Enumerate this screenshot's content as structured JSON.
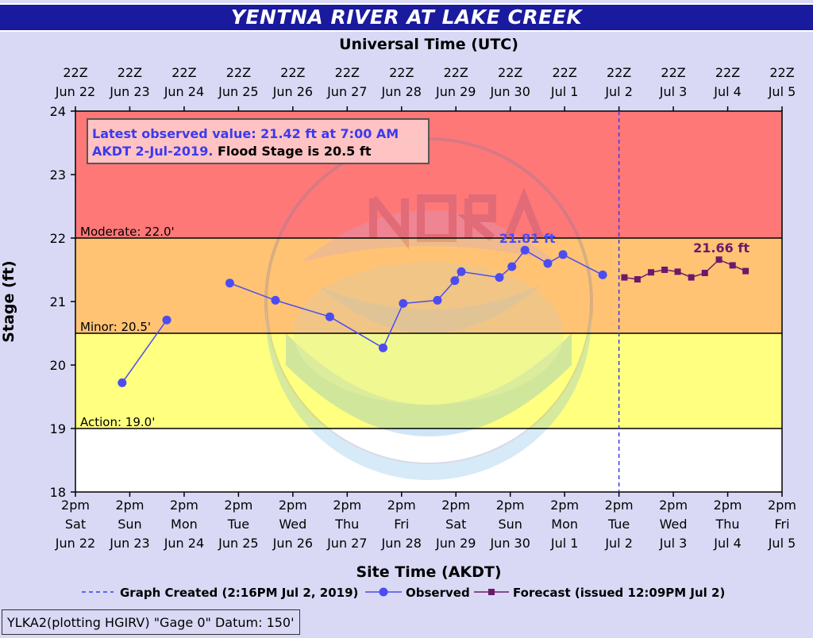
{
  "chart_data": {
    "type": "line",
    "title": "YENTNA RIVER AT LAKE CREEK",
    "top_axis_title": "Universal Time (UTC)",
    "xlabel": "Site Time (AKDT)",
    "ylabel": "Stage (ft)",
    "ylim": [
      18,
      24
    ],
    "yticks": [
      "18",
      "19",
      "20",
      "21",
      "22",
      "23",
      "24"
    ],
    "top_ticks": [
      [
        "22Z",
        "Jun 22"
      ],
      [
        "22Z",
        "Jun 23"
      ],
      [
        "22Z",
        "Jun 24"
      ],
      [
        "22Z",
        "Jun 25"
      ],
      [
        "22Z",
        "Jun 26"
      ],
      [
        "22Z",
        "Jun 27"
      ],
      [
        "22Z",
        "Jun 28"
      ],
      [
        "22Z",
        "Jun 29"
      ],
      [
        "22Z",
        "Jun 30"
      ],
      [
        "22Z",
        "Jul 1"
      ],
      [
        "22Z",
        "Jul 2"
      ],
      [
        "22Z",
        "Jul 3"
      ],
      [
        "22Z",
        "Jul 4"
      ],
      [
        "22Z",
        "Jul 5"
      ]
    ],
    "bottom_ticks": [
      [
        "2pm",
        "Sat",
        "Jun 22"
      ],
      [
        "2pm",
        "Sun",
        "Jun 23"
      ],
      [
        "2pm",
        "Mon",
        "Jun 24"
      ],
      [
        "2pm",
        "Tue",
        "Jun 25"
      ],
      [
        "2pm",
        "Wed",
        "Jun 26"
      ],
      [
        "2pm",
        "Thu",
        "Jun 27"
      ],
      [
        "2pm",
        "Fri",
        "Jun 28"
      ],
      [
        "2pm",
        "Sat",
        "Jun 29"
      ],
      [
        "2pm",
        "Sun",
        "Jun 30"
      ],
      [
        "2pm",
        "Mon",
        "Jul 1"
      ],
      [
        "2pm",
        "Tue",
        "Jul 2"
      ],
      [
        "2pm",
        "Wed",
        "Jul 3"
      ],
      [
        "2pm",
        "Thu",
        "Jul 4"
      ],
      [
        "2pm",
        "Fri",
        "Jul 5"
      ]
    ],
    "bands": [
      {
        "name": "Moderate",
        "label": "Moderate: 22.0'",
        "from": 22.0,
        "to": 24.0,
        "color": "#ff7878"
      },
      {
        "name": "Minor",
        "label": "Minor: 20.5'",
        "from": 20.5,
        "to": 22.0,
        "color": "#ffc373"
      },
      {
        "name": "Action",
        "label": "Action: 19.0'",
        "from": 19.0,
        "to": 20.5,
        "color": "#ffff80"
      },
      {
        "name": "Normal",
        "label": "",
        "from": 18.0,
        "to": 19.0,
        "color": "#ffffff"
      }
    ],
    "series": [
      {
        "name": "Observed",
        "color": "#4c4cf0",
        "segments": [
          [
            [
              0.86,
              19.72
            ],
            [
              1.68,
              20.71
            ]
          ],
          [
            [
              2.84,
              21.29
            ],
            [
              3.68,
              21.02
            ],
            [
              4.68,
              20.76
            ],
            [
              5.66,
              20.27
            ],
            [
              6.03,
              20.97
            ],
            [
              6.66,
              21.02
            ],
            [
              6.98,
              21.33
            ],
            [
              7.1,
              21.47
            ],
            [
              7.8,
              21.38
            ],
            [
              8.03,
              21.55
            ],
            [
              8.27,
              21.81
            ],
            [
              8.69,
              21.6
            ],
            [
              8.97,
              21.74
            ],
            [
              9.7,
              21.42
            ]
          ]
        ]
      },
      {
        "name": "Forecast",
        "color": "#6a1a6a",
        "segments": [
          [
            [
              10.1,
              21.38
            ],
            [
              10.34,
              21.35
            ],
            [
              10.59,
              21.46
            ],
            [
              10.84,
              21.5
            ],
            [
              11.08,
              21.47
            ],
            [
              11.33,
              21.38
            ],
            [
              11.58,
              21.45
            ],
            [
              11.84,
              21.66
            ],
            [
              12.09,
              21.57
            ],
            [
              12.33,
              21.48
            ]
          ]
        ]
      }
    ],
    "created_x": 10.0,
    "peak_labels": [
      {
        "text": "21.81 ft",
        "x": 8.27,
        "y": 21.81,
        "series": "Observed"
      },
      {
        "text": "21.66 ft",
        "x": 11.84,
        "y": 21.66,
        "series": "Forecast"
      }
    ],
    "info_box": {
      "line1": "Latest observed value: 21.42  ft at 7:00 AM",
      "line2a": "AKDT 2-Jul-2019.",
      "line2b": " Flood Stage is 20.5 ft"
    },
    "legend": {
      "created": "Graph Created (2:16PM Jul 2, 2019)",
      "observed": "Observed",
      "forecast": "Forecast (issued 12:09PM Jul 2)"
    },
    "datum": "YLKA2(plotting HGIRV) \"Gage 0\" Datum: 150'",
    "grid": false,
    "watermark": "NOAA U.S. Department of Commerce seal"
  }
}
